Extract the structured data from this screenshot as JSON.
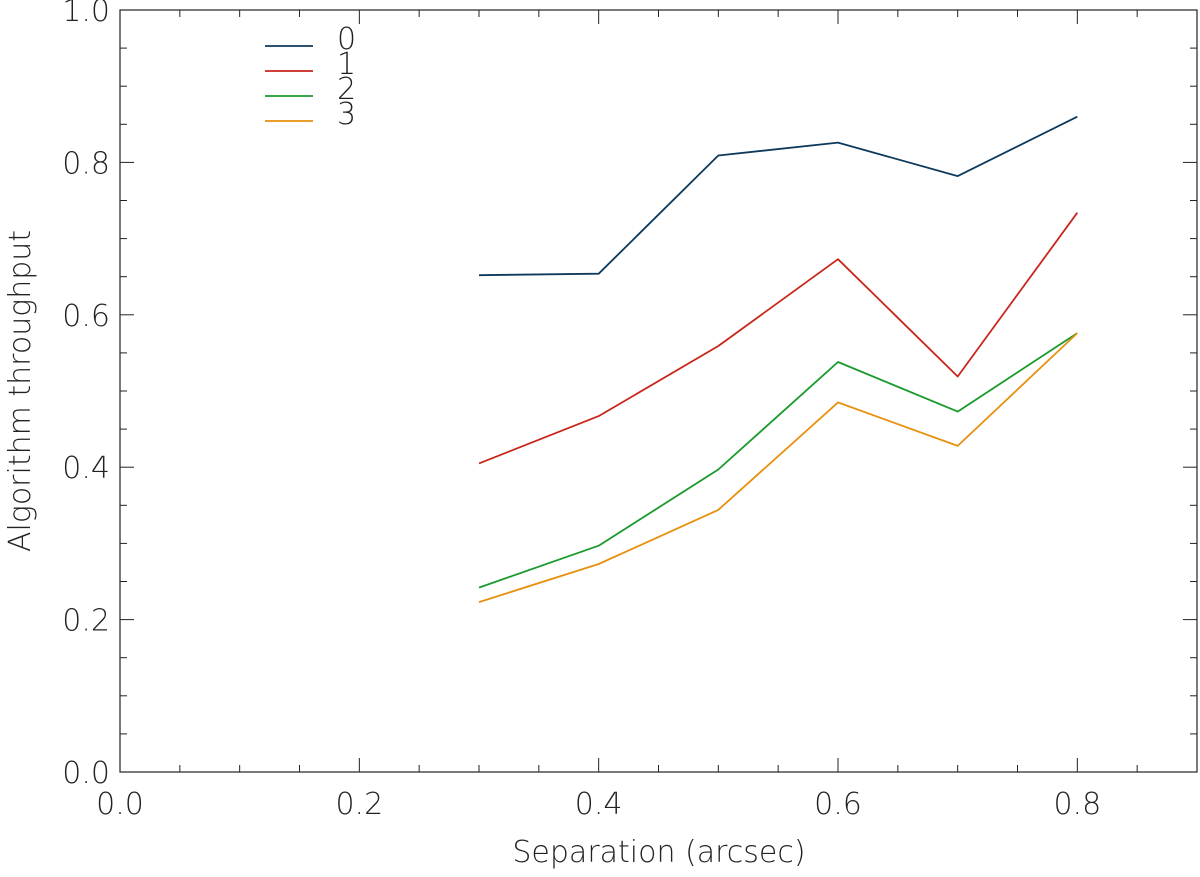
{
  "chart_data": {
    "type": "line",
    "title": "",
    "xlabel": "Separation (arcsec)",
    "ylabel": "Algorithm throughput",
    "xlim": [
      0.0,
      0.9
    ],
    "ylim": [
      0.0,
      1.0
    ],
    "x_major_ticks": [
      0.0,
      0.2,
      0.4,
      0.6,
      0.8
    ],
    "x_tick_labels": [
      "0.0",
      "0.2",
      "0.4",
      "0.6",
      "0.8"
    ],
    "y_major_ticks": [
      0.0,
      0.2,
      0.4,
      0.6,
      0.8,
      1.0
    ],
    "y_tick_labels": [
      "0.0",
      "0.2",
      "0.4",
      "0.6",
      "0.8",
      "1.0"
    ],
    "x_minor_step": 0.05,
    "y_minor_step": 0.05,
    "grid": false,
    "legend_position": "top-left",
    "x": [
      0.3,
      0.4,
      0.5,
      0.6,
      0.7,
      0.8
    ],
    "series": [
      {
        "name": "0",
        "color": "#0d3a5c",
        "values": [
          0.652,
          0.654,
          0.809,
          0.826,
          0.782,
          0.86
        ]
      },
      {
        "name": "1",
        "color": "#c8261b",
        "values": [
          0.405,
          0.467,
          0.559,
          0.673,
          0.519,
          0.734
        ]
      },
      {
        "name": "2",
        "color": "#1a9a2c",
        "values": [
          0.242,
          0.297,
          0.397,
          0.538,
          0.473,
          0.576
        ]
      },
      {
        "name": "3",
        "color": "#e8900f",
        "values": [
          0.223,
          0.273,
          0.344,
          0.485,
          0.428,
          0.576
        ]
      }
    ]
  }
}
